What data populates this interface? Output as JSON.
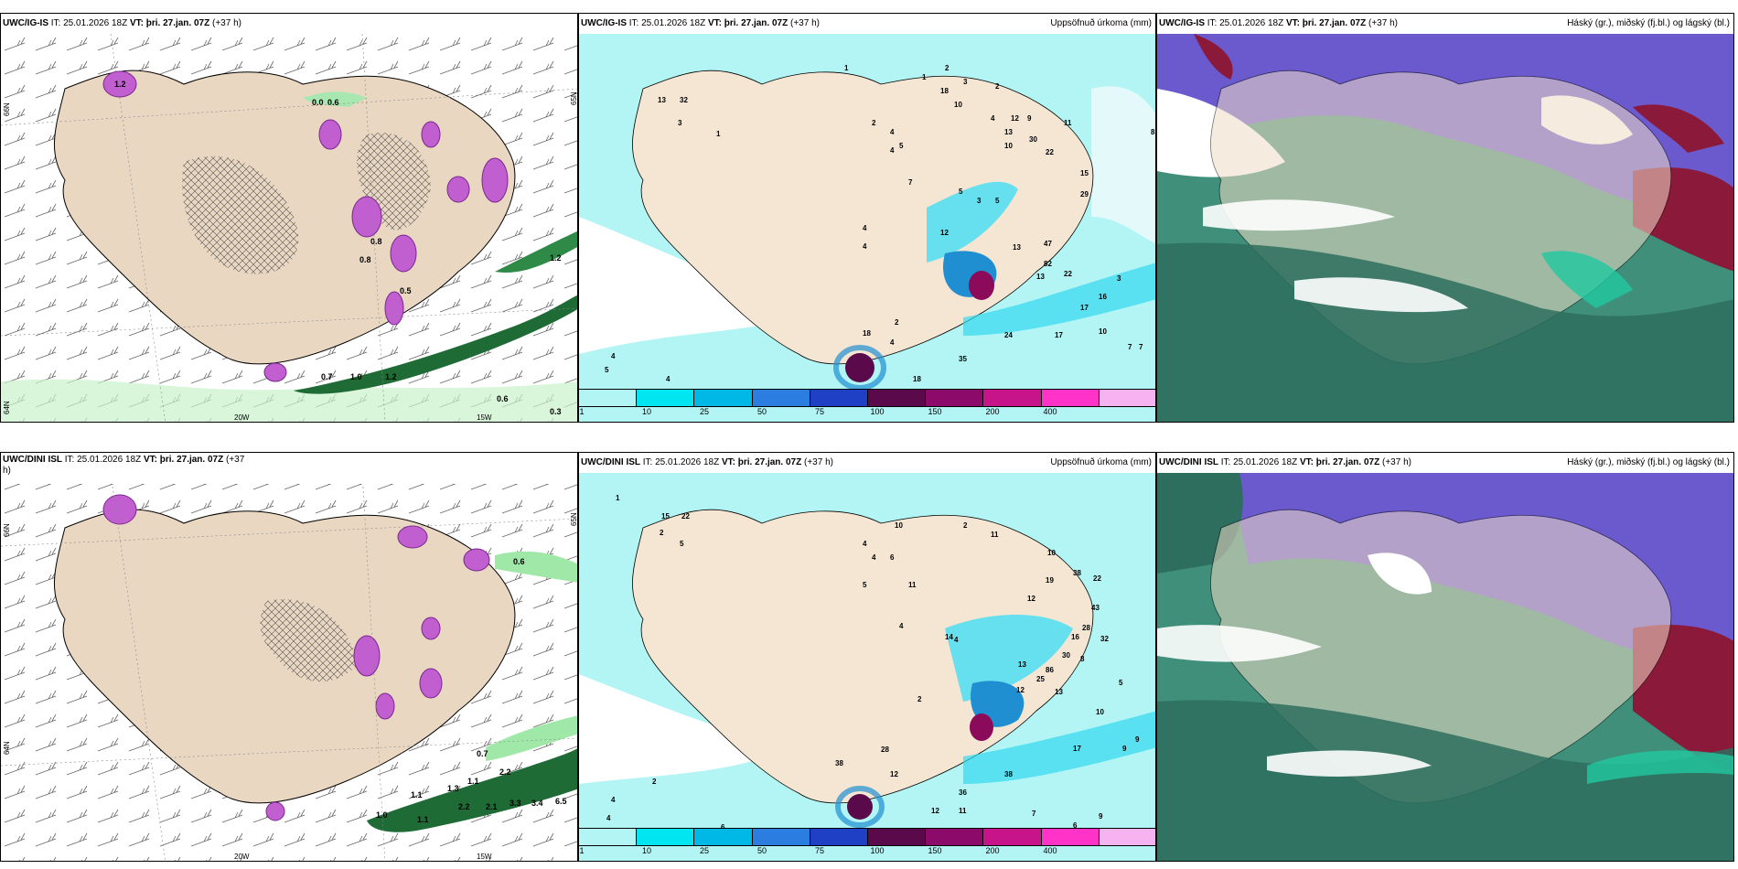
{
  "panels": [
    {
      "id": "p1",
      "title_model": "UWC/IG-IS",
      "title_it": " IT: 25.01.2026 18Z ",
      "title_vt": "VT: þri. 27.jan. 07Z",
      "title_lead": " (+37 h)",
      "right_title": "",
      "lon_labels": [
        "20W",
        "15W"
      ],
      "lat_labels": [
        "66N",
        "65N",
        "64N"
      ],
      "value_labels": [
        "0.0",
        "0.6",
        "1.0",
        "0.7",
        "1.2",
        "1.2",
        "0.6",
        "0.3",
        "0.8",
        "0.5",
        "1.2",
        "0.8"
      ]
    },
    {
      "id": "p2",
      "title_model": "UWC/IG-IS",
      "title_it": " IT: 25.01.2026 18Z ",
      "title_vt": "VT: þri. 27.jan. 07Z",
      "title_lead": " (+37 h)",
      "right_title": "Uppsöfnuð úrkoma (mm)",
      "colorbar_labels": [
        "1",
        "10",
        "25",
        "50",
        "75",
        "100",
        "150",
        "200",
        "400"
      ],
      "precip_labels": [
        "13",
        "32",
        "3",
        "1",
        "1",
        "2",
        "4",
        "5",
        "1",
        "2",
        "3",
        "2",
        "4",
        "12",
        "13",
        "10",
        "9",
        "30",
        "11",
        "22",
        "15",
        "29",
        "4",
        "7",
        "12",
        "4",
        "5",
        "3",
        "5",
        "10",
        "18",
        "4",
        "8",
        "13",
        "47",
        "82",
        "22",
        "13",
        "16",
        "17",
        "3",
        "24",
        "17",
        "10",
        "7",
        "7",
        "35",
        "18",
        "4",
        "2",
        "18",
        "5",
        "4",
        "4",
        "5",
        "5",
        "5",
        "7"
      ]
    },
    {
      "id": "p3",
      "title_model": "UWC/IG-IS",
      "title_it": " IT: 25.01.2026 18Z ",
      "title_vt": "VT: þri. 27.jan. 07Z",
      "title_lead": " (+37 h)",
      "right_title": "Háský (gr.), miðský (fj.bl.) og lágský (bl.)"
    },
    {
      "id": "p4",
      "title_model": "UWC/DINI ISL",
      "title_it": " IT: 25.01.2026 18Z ",
      "title_vt": "VT: þri. 27.jan. 07Z",
      "title_lead": " (+37",
      "title_wrap": "h)",
      "right_title": "",
      "lon_labels": [
        "20W",
        "15W"
      ],
      "lat_labels": [
        "66N",
        "65N",
        "64N"
      ],
      "value_labels": [
        "0.7",
        "2.2",
        "1.1",
        "1.1",
        "1.3",
        "1.1",
        "1.0",
        "2.2",
        "2.1",
        "3.3",
        "3.4",
        "6.5",
        "0.6"
      ]
    },
    {
      "id": "p5",
      "title_model": "UWC/DINI ISL",
      "title_it": " IT: 25.01.2026 18Z ",
      "title_vt": "VT: þri. 27.jan. 07Z",
      "title_lead": " (+37 h)",
      "right_title": "Uppsöfnuð úrkoma (mm)",
      "colorbar_labels": [
        "1",
        "10",
        "25",
        "50",
        "75",
        "100",
        "150",
        "200",
        "400"
      ],
      "precip_labels": [
        "1",
        "15",
        "22",
        "5",
        "2",
        "10",
        "4",
        "4",
        "6",
        "5",
        "11",
        "2",
        "11",
        "12",
        "10",
        "19",
        "38",
        "22",
        "43",
        "28",
        "32",
        "16",
        "30",
        "8",
        "5",
        "4",
        "14",
        "2",
        "4",
        "13",
        "25",
        "12",
        "86",
        "13",
        "17",
        "10",
        "9",
        "9",
        "28",
        "38",
        "12",
        "36",
        "38",
        "4",
        "2",
        "4",
        "6",
        "12",
        "11",
        "7",
        "6",
        "9"
      ]
    },
    {
      "id": "p6",
      "title_model": "UWC/DINI ISL",
      "title_it": " IT: 25.01.2026 18Z ",
      "title_vt": "VT: þri. 27.jan. 07Z",
      "title_lead": " (+37 h)",
      "right_title": "Háský (gr.), miðský (fj.bl.) og lágský (bl.)"
    }
  ],
  "colors": {
    "land": "#f5e6d3",
    "land_dark": "#e8d5bf",
    "ocean_precip": "#b3f5f5",
    "precip_mid": "#33d9f0",
    "precip_high": "#1f8fd1",
    "precip_max": "#8b0a5a",
    "snow_purple": "#b24fc4",
    "rain_green": "#9fe8a8",
    "rain_dark": "#145c2e",
    "cloud_high": "#6a5acd",
    "cloud_mid": "#3c8a74",
    "cloud_low": "#8b1a3a",
    "colorbar": [
      "#b3f5f5",
      "#00e5f0",
      "#00b8e6",
      "#2c7de0",
      "#1f3fc4",
      "#5a0a4a",
      "#8b0a6a",
      "#c8148a",
      "#ff33c8",
      "#f5b3f0"
    ]
  }
}
